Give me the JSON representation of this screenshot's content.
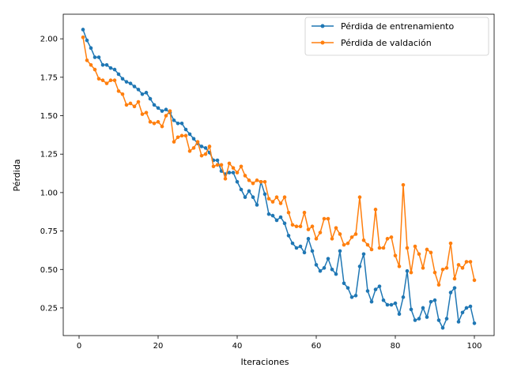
{
  "chart_data": {
    "type": "line",
    "title": "",
    "xlabel": "Iteraciones",
    "ylabel": "Pérdida",
    "xlim": [
      -4,
      105
    ],
    "ylim": [
      0.07,
      2.16
    ],
    "xticks": [
      0,
      20,
      40,
      60,
      80,
      100
    ],
    "yticks": [
      0.25,
      0.5,
      0.75,
      1.0,
      1.25,
      1.5,
      1.75,
      2.0
    ],
    "xtick_labels": [
      "0",
      "20",
      "40",
      "60",
      "80",
      "100"
    ],
    "ytick_labels": [
      "0.25",
      "0.50",
      "0.75",
      "1.00",
      "1.25",
      "1.50",
      "1.75",
      "2.00"
    ],
    "grid": false,
    "legend_position": "top-right",
    "x": [
      1,
      2,
      3,
      4,
      5,
      6,
      7,
      8,
      9,
      10,
      11,
      12,
      13,
      14,
      15,
      16,
      17,
      18,
      19,
      20,
      21,
      22,
      23,
      24,
      25,
      26,
      27,
      28,
      29,
      30,
      31,
      32,
      33,
      34,
      35,
      36,
      37,
      38,
      39,
      40,
      41,
      42,
      43,
      44,
      45,
      46,
      47,
      48,
      49,
      50,
      51,
      52,
      53,
      54,
      55,
      56,
      57,
      58,
      59,
      60,
      61,
      62,
      63,
      64,
      65,
      66,
      67,
      68,
      69,
      70,
      71,
      72,
      73,
      74,
      75,
      76,
      77,
      78,
      79,
      80,
      81,
      82,
      83,
      84,
      85,
      86,
      87,
      88,
      89,
      90,
      91,
      92,
      93,
      94,
      95,
      96,
      97,
      98,
      99,
      100
    ],
    "series": [
      {
        "name": "Pérdida de entrenamiento",
        "color": "#1f77b4",
        "values": [
          2.06,
          1.99,
          1.94,
          1.88,
          1.88,
          1.83,
          1.83,
          1.81,
          1.8,
          1.77,
          1.74,
          1.72,
          1.71,
          1.69,
          1.67,
          1.64,
          1.65,
          1.61,
          1.57,
          1.55,
          1.53,
          1.54,
          1.52,
          1.47,
          1.45,
          1.45,
          1.41,
          1.38,
          1.35,
          1.32,
          1.3,
          1.29,
          1.26,
          1.21,
          1.21,
          1.14,
          1.12,
          1.13,
          1.13,
          1.07,
          1.02,
          0.97,
          1.01,
          0.97,
          0.92,
          1.07,
          0.99,
          0.86,
          0.85,
          0.82,
          0.84,
          0.8,
          0.72,
          0.67,
          0.64,
          0.65,
          0.61,
          0.7,
          0.62,
          0.53,
          0.49,
          0.51,
          0.57,
          0.5,
          0.47,
          0.62,
          0.41,
          0.38,
          0.32,
          0.33,
          0.52,
          0.6,
          0.36,
          0.29,
          0.37,
          0.39,
          0.3,
          0.27,
          0.27,
          0.28,
          0.21,
          0.32,
          0.49,
          0.24,
          0.17,
          0.18,
          0.25,
          0.19,
          0.29,
          0.3,
          0.17,
          0.12,
          0.18,
          0.35,
          0.38,
          0.16,
          0.22,
          0.25,
          0.26,
          0.15
        ]
      },
      {
        "name": "Pérdida de valdación",
        "color": "#ff7f0e",
        "values": [
          2.01,
          1.86,
          1.83,
          1.8,
          1.74,
          1.73,
          1.71,
          1.73,
          1.73,
          1.66,
          1.64,
          1.57,
          1.58,
          1.56,
          1.59,
          1.51,
          1.52,
          1.46,
          1.45,
          1.46,
          1.43,
          1.5,
          1.53,
          1.33,
          1.36,
          1.37,
          1.37,
          1.27,
          1.29,
          1.33,
          1.24,
          1.25,
          1.3,
          1.17,
          1.18,
          1.18,
          1.09,
          1.19,
          1.16,
          1.13,
          1.17,
          1.11,
          1.08,
          1.06,
          1.08,
          1.07,
          1.07,
          0.96,
          0.94,
          0.97,
          0.93,
          0.97,
          0.87,
          0.79,
          0.78,
          0.78,
          0.87,
          0.76,
          0.78,
          0.7,
          0.74,
          0.83,
          0.83,
          0.7,
          0.77,
          0.73,
          0.66,
          0.67,
          0.71,
          0.73,
          0.97,
          0.69,
          0.66,
          0.63,
          0.89,
          0.64,
          0.64,
          0.7,
          0.71,
          0.59,
          0.52,
          1.05,
          0.64,
          0.48,
          0.65,
          0.6,
          0.51,
          0.63,
          0.61,
          0.48,
          0.4,
          0.5,
          0.51,
          0.67,
          0.44,
          0.53,
          0.51,
          0.55,
          0.55,
          0.43
        ]
      }
    ]
  }
}
